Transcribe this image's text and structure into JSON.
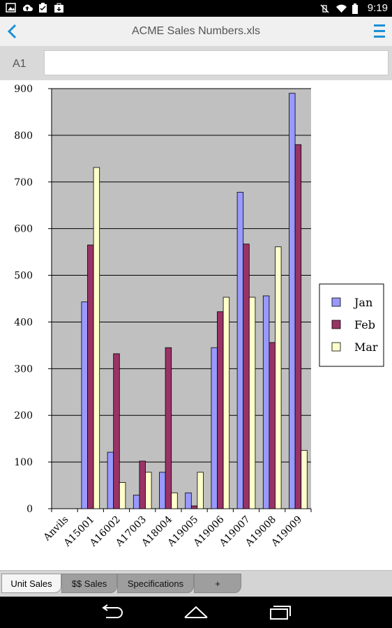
{
  "status": {
    "time": "9:19"
  },
  "appbar": {
    "title": "ACME Sales Numbers.xls"
  },
  "formula": {
    "cell_ref": "A1",
    "value": ""
  },
  "chart_data": {
    "type": "bar",
    "categories": [
      "Anvils",
      "A15001",
      "A16002",
      "A17003",
      "A18004",
      "A19005",
      "A19006",
      "A19007",
      "A19008",
      "A19009"
    ],
    "series": [
      {
        "name": "Jan",
        "values": [
          0,
          443,
          121,
          29,
          78,
          34,
          345,
          678,
          456,
          890
        ],
        "color": "#9999ff"
      },
      {
        "name": "Feb",
        "values": [
          0,
          565,
          332,
          102,
          345,
          6,
          422,
          567,
          356,
          780
        ],
        "color": "#993366"
      },
      {
        "name": "Mar",
        "values": [
          0,
          731,
          56,
          78,
          34,
          78,
          453,
          453,
          561,
          125
        ],
        "color": "#ffffcc"
      }
    ],
    "ylim": [
      0,
      900
    ],
    "yticks": [
      "0",
      "100",
      "200",
      "300",
      "400",
      "500",
      "600",
      "700",
      "800",
      "900"
    ],
    "grid": true,
    "plot_background": "#c0c0c0",
    "legend_position": "right"
  },
  "tabs": [
    {
      "label": "Unit Sales",
      "active": true
    },
    {
      "label": "$$ Sales",
      "active": false
    },
    {
      "label": "Specifications",
      "active": false
    },
    {
      "label": "+",
      "active": false
    }
  ]
}
